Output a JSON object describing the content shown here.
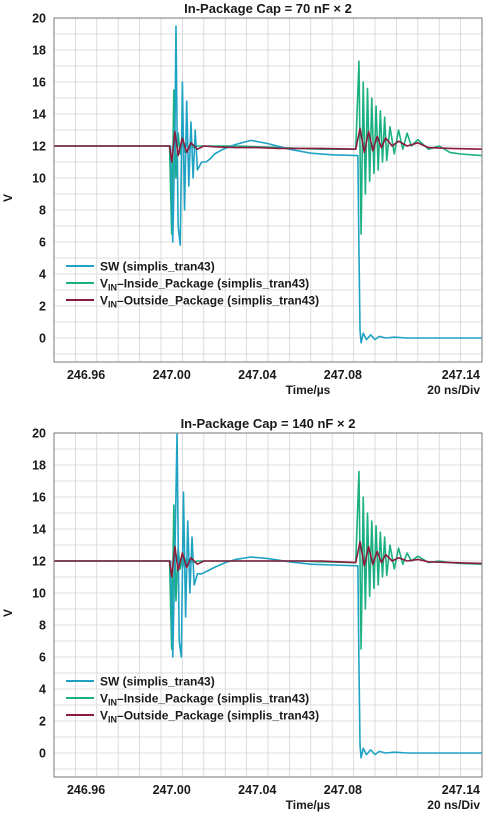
{
  "colors": {
    "sw": "#1fa3c4",
    "vin_inside": "#1bb081",
    "vin_outside": "#8b1b3b",
    "grid": "#d4d4d4",
    "frame": "#7a7a7a"
  },
  "chart_data": [
    {
      "type": "line",
      "title": "In-Package Cap = 70 nF × 2",
      "xlabel": "Time/µs",
      "xlabel_right": "20 ns/Div",
      "ylabel": "V",
      "xlim": [
        246.945,
        247.145
      ],
      "ylim": [
        -1.5,
        20
      ],
      "xticks": [
        "246.96",
        "247.00",
        "247.04",
        "247.08",
        "247.14"
      ],
      "xtick_values": [
        246.96,
        247.0,
        247.04,
        247.08,
        247.14
      ],
      "yticks": [
        0,
        2,
        4,
        6,
        8,
        10,
        12,
        14,
        16,
        18,
        20
      ],
      "grid": true,
      "legend_position": "bottom-left",
      "series": [
        {
          "name": "SW (simplis_tran43)",
          "color_key": "sw",
          "x": [
            246.945,
            246.995,
            246.9995,
            247.0005,
            247.0015,
            247.002,
            247.003,
            247.004,
            247.005,
            247.006,
            247.007,
            247.008,
            247.009,
            247.01,
            247.011,
            247.012,
            247.014,
            247.016,
            247.018,
            247.02,
            247.024,
            247.03,
            247.037,
            247.045,
            247.055,
            247.065,
            247.075,
            247.087,
            247.0875,
            247.088,
            247.0885,
            247.0895,
            247.091,
            247.093,
            247.095,
            247.097,
            247.1,
            247.104,
            247.11,
            247.12,
            247.145
          ],
          "y": [
            12.0,
            12.0,
            12.0,
            6.0,
            12.5,
            19.5,
            7.0,
            5.8,
            16.0,
            8.0,
            14.8,
            9.5,
            13.5,
            10.0,
            13.0,
            10.5,
            11.0,
            11.0,
            11.2,
            11.5,
            11.8,
            12.1,
            12.35,
            12.15,
            11.8,
            11.55,
            11.45,
            11.4,
            5.5,
            0.5,
            -0.3,
            0.3,
            -0.1,
            0.2,
            -0.1,
            0.1,
            0.0,
            0.05,
            0.0,
            0.0,
            0.0
          ]
        },
        {
          "name": "VIN_Inside_Package (simplis_tran43)",
          "color_key": "vin_inside",
          "x": [
            246.945,
            246.999,
            247.0,
            247.001,
            247.002,
            247.003,
            247.004,
            247.005,
            247.006,
            247.007,
            247.008,
            247.009,
            247.01,
            247.012,
            247.014,
            247.016,
            247.02,
            247.03,
            247.04,
            247.05,
            247.06,
            247.07,
            247.086,
            247.0875,
            247.0885,
            247.0895,
            247.0905,
            247.0915,
            247.0925,
            247.0935,
            247.0945,
            247.0955,
            247.0965,
            247.0975,
            247.0985,
            247.0995,
            247.1005,
            247.102,
            247.104,
            247.106,
            247.108,
            247.11,
            247.112,
            247.115,
            247.12,
            247.125,
            247.13,
            247.135,
            247.145
          ],
          "y": [
            12.0,
            12.0,
            6.5,
            15.5,
            10.0,
            12.8,
            11.5,
            12.3,
            11.6,
            12.2,
            11.8,
            12.1,
            11.9,
            12.0,
            12.0,
            12.0,
            12.0,
            12.0,
            11.95,
            11.9,
            11.85,
            11.8,
            11.8,
            17.3,
            6.5,
            16.0,
            9.0,
            15.6,
            9.8,
            15.0,
            10.3,
            14.5,
            10.5,
            14.2,
            11.0,
            13.8,
            11.1,
            13.2,
            11.5,
            13.0,
            11.8,
            12.8,
            12.0,
            12.4,
            11.8,
            12.0,
            11.6,
            11.5,
            11.4
          ]
        },
        {
          "name": "VIN_Outside_Package (simplis_tran43)",
          "color_key": "vin_outside",
          "x": [
            246.945,
            246.999,
            247.0,
            247.0015,
            247.003,
            247.005,
            247.007,
            247.009,
            247.012,
            247.015,
            247.02,
            247.03,
            247.04,
            247.05,
            247.06,
            247.07,
            247.086,
            247.088,
            247.09,
            247.092,
            247.094,
            247.096,
            247.098,
            247.1,
            247.103,
            247.106,
            247.11,
            247.115,
            247.12,
            247.13,
            247.145
          ],
          "y": [
            12.0,
            12.0,
            11.0,
            12.9,
            11.4,
            12.5,
            11.6,
            12.2,
            11.8,
            12.0,
            11.95,
            11.9,
            11.9,
            11.85,
            11.85,
            11.85,
            11.8,
            13.1,
            11.6,
            12.9,
            11.7,
            12.6,
            11.9,
            12.5,
            12.0,
            12.3,
            12.0,
            12.2,
            11.9,
            11.85,
            11.8
          ]
        }
      ]
    },
    {
      "type": "line",
      "title": "In-Package Cap = 140 nF × 2",
      "xlabel": "Time/µs",
      "xlabel_right": "20 ns/Div",
      "ylabel": "V",
      "xlim": [
        246.945,
        247.145
      ],
      "ylim": [
        -1.5,
        20
      ],
      "xticks": [
        "246.96",
        "247.00",
        "247.04",
        "247.08",
        "247.14"
      ],
      "xtick_values": [
        246.96,
        247.0,
        247.04,
        247.08,
        247.14
      ],
      "yticks": [
        0,
        2,
        4,
        6,
        8,
        10,
        12,
        14,
        16,
        18,
        20
      ],
      "grid": true,
      "legend_position": "bottom-left",
      "series": [
        {
          "name": "SW (simplis_tran43)",
          "color_key": "sw",
          "x": [
            246.945,
            246.995,
            246.9995,
            247.0005,
            247.0015,
            247.0025,
            247.0035,
            247.0045,
            247.0055,
            247.0065,
            247.0075,
            247.0085,
            247.0095,
            247.0105,
            247.012,
            247.014,
            247.017,
            247.02,
            247.025,
            247.03,
            247.037,
            247.045,
            247.055,
            247.065,
            247.075,
            247.087,
            247.0875,
            247.088,
            247.0885,
            247.0895,
            247.091,
            247.093,
            247.095,
            247.097,
            247.1,
            247.104,
            247.11,
            247.12,
            247.145
          ],
          "y": [
            12.0,
            12.0,
            12.0,
            6.0,
            12.5,
            20.0,
            7.0,
            6.0,
            16.3,
            8.5,
            14.5,
            10.0,
            13.5,
            10.5,
            11.2,
            11.2,
            11.4,
            11.6,
            11.9,
            12.1,
            12.25,
            12.15,
            11.95,
            11.8,
            11.75,
            11.7,
            5.5,
            0.5,
            -0.3,
            0.3,
            -0.1,
            0.2,
            -0.1,
            0.1,
            0.0,
            0.05,
            0.0,
            0.0,
            0.0
          ]
        },
        {
          "name": "VIN_Inside_Package (simplis_tran43)",
          "color_key": "vin_inside",
          "x": [
            246.945,
            246.999,
            247.0,
            247.001,
            247.002,
            247.003,
            247.004,
            247.005,
            247.006,
            247.007,
            247.008,
            247.009,
            247.01,
            247.012,
            247.014,
            247.016,
            247.02,
            247.03,
            247.04,
            247.05,
            247.06,
            247.07,
            247.086,
            247.0875,
            247.0885,
            247.0895,
            247.0905,
            247.0915,
            247.0925,
            247.0935,
            247.0945,
            247.0955,
            247.0965,
            247.0975,
            247.0985,
            247.0995,
            247.1005,
            247.102,
            247.104,
            247.106,
            247.108,
            247.11,
            247.112,
            247.115,
            247.12,
            247.125,
            247.13,
            247.135,
            247.145
          ],
          "y": [
            12.0,
            12.0,
            6.5,
            15.5,
            9.5,
            12.8,
            11.5,
            12.3,
            11.6,
            12.2,
            11.8,
            12.1,
            11.9,
            12.0,
            12.0,
            12.0,
            12.0,
            12.0,
            12.0,
            12.0,
            12.0,
            11.95,
            11.9,
            17.6,
            6.5,
            16.0,
            9.0,
            15.0,
            9.8,
            14.5,
            10.3,
            14.2,
            10.5,
            13.8,
            11.0,
            13.5,
            11.1,
            13.0,
            11.5,
            12.8,
            11.8,
            12.5,
            12.0,
            12.3,
            11.9,
            12.0,
            11.9,
            11.85,
            11.8
          ]
        },
        {
          "name": "VIN_Outside_Package (simplis_tran43)",
          "color_key": "vin_outside",
          "x": [
            246.945,
            246.999,
            247.0,
            247.0015,
            247.003,
            247.005,
            247.007,
            247.009,
            247.012,
            247.015,
            247.02,
            247.03,
            247.04,
            247.05,
            247.06,
            247.07,
            247.086,
            247.088,
            247.09,
            247.092,
            247.094,
            247.096,
            247.098,
            247.1,
            247.103,
            247.106,
            247.11,
            247.115,
            247.12,
            247.13,
            247.145
          ],
          "y": [
            12.0,
            12.0,
            11.0,
            12.9,
            11.4,
            12.5,
            11.6,
            12.2,
            11.8,
            12.0,
            12.0,
            12.0,
            12.0,
            12.0,
            12.0,
            12.0,
            11.9,
            13.2,
            11.7,
            12.9,
            11.8,
            12.6,
            11.9,
            12.4,
            12.0,
            12.2,
            12.0,
            12.1,
            11.95,
            11.9,
            11.85
          ]
        }
      ]
    }
  ]
}
